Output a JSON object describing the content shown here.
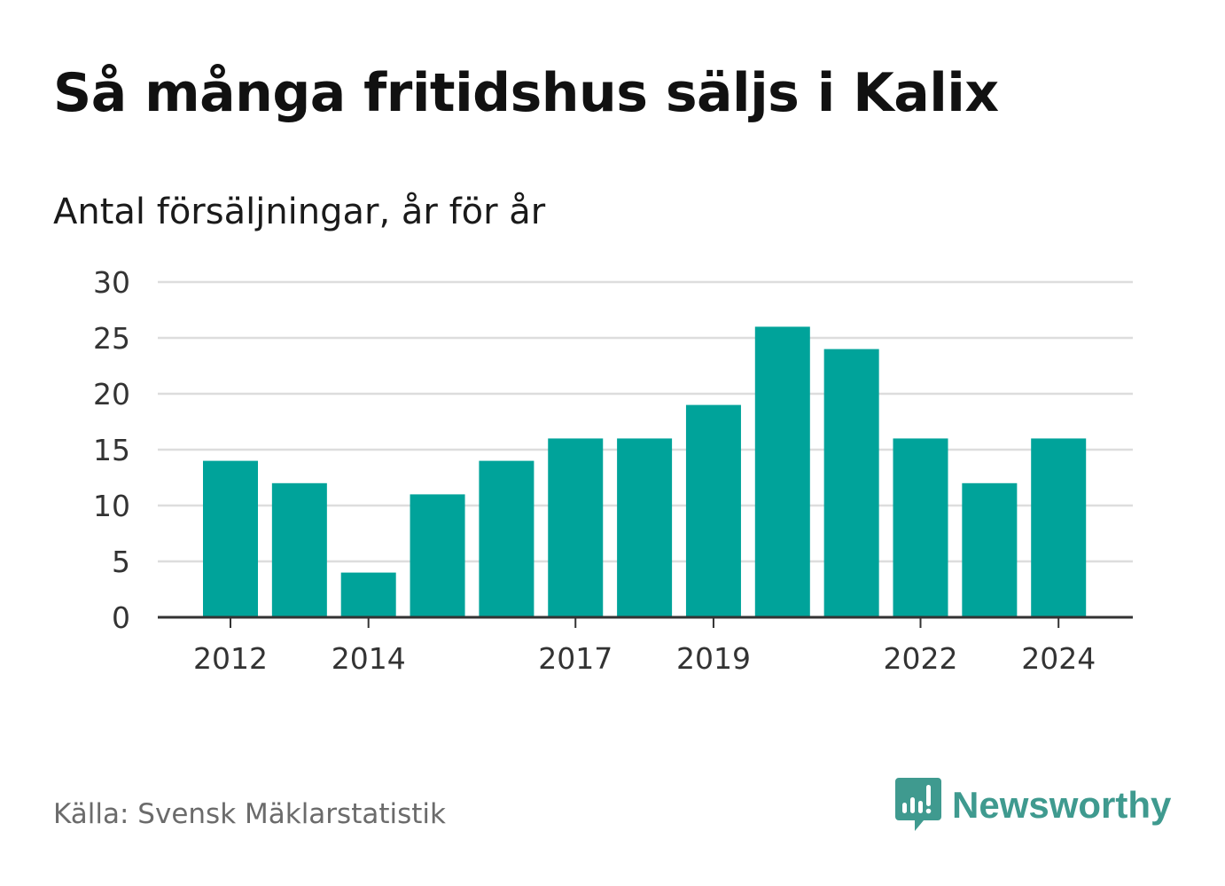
{
  "header": {
    "title": "Så många fritidshus säljs i Kalix",
    "subtitle": "Antal försäljningar, år för år"
  },
  "footer": {
    "source": "Källa: Svensk Mäklarstatistik",
    "brand": "Newsworthy",
    "brand_color": "#3f9a8f",
    "brand_icon": "bar-chart-speech-bubble-icon"
  },
  "colors": {
    "bar": "#00a39a",
    "grid": "#dddddd",
    "axis": "#333333"
  },
  "chart_data": {
    "type": "bar",
    "categories": [
      "2012",
      "2013",
      "2014",
      "2015",
      "2016",
      "2017",
      "2018",
      "2019",
      "2020",
      "2021",
      "2022",
      "2023",
      "2024"
    ],
    "values": [
      14,
      12,
      4,
      11,
      14,
      16,
      16,
      19,
      26,
      24,
      16,
      12,
      16
    ],
    "x_tick_labels": [
      "2012",
      "2014",
      "2017",
      "2019",
      "2022",
      "2024"
    ],
    "y_ticks": [
      0,
      5,
      10,
      15,
      20,
      25,
      30
    ],
    "ylim": [
      0,
      30
    ],
    "grid": true,
    "legend": "none",
    "title": "Så många fritidshus säljs i Kalix",
    "subtitle": "Antal försäljningar, år för år",
    "xlabel": "",
    "ylabel": ""
  }
}
